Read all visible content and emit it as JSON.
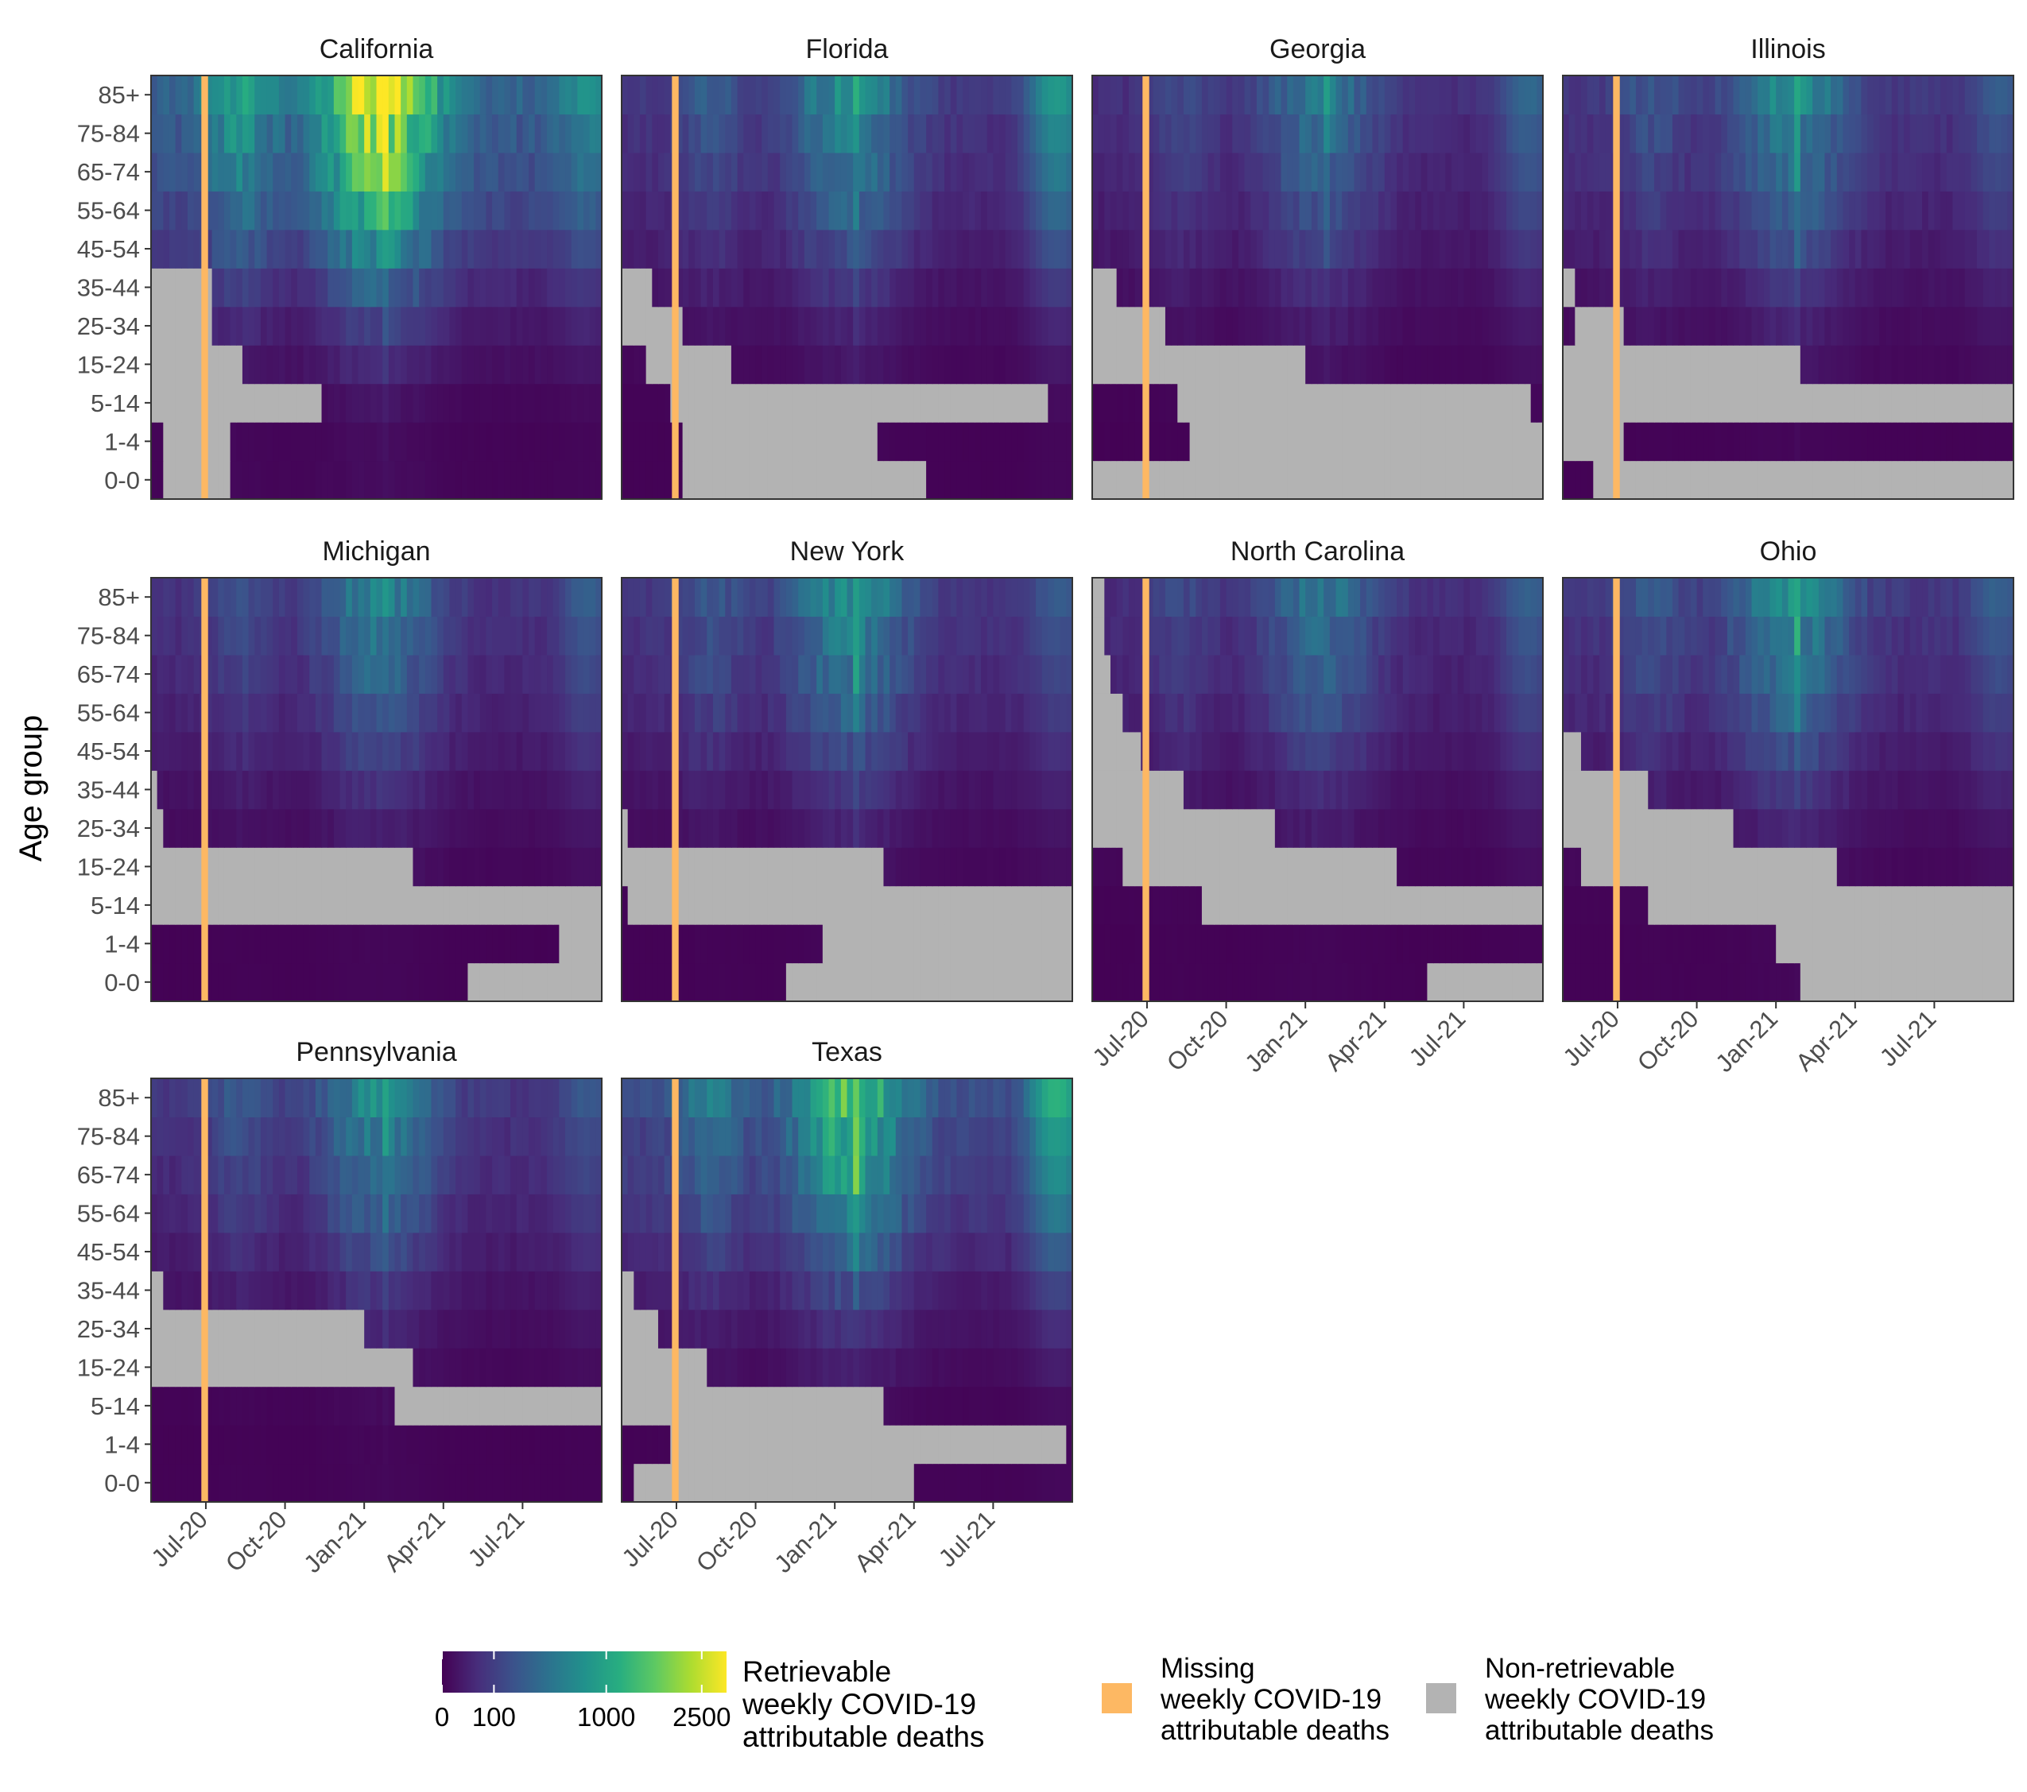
{
  "chart_data": {
    "type": "heatmap",
    "ylabel": "Age group",
    "age_groups": [
      "0-0",
      "1-4",
      "5-14",
      "15-24",
      "25-34",
      "35-44",
      "45-54",
      "55-64",
      "65-74",
      "75-84",
      "85+"
    ],
    "x_tick_labels": [
      "Jul-20",
      "Oct-20",
      "Jan-21",
      "Apr-21",
      "Jul-21"
    ],
    "x_tick_weeks": [
      9,
      22,
      35,
      48,
      61
    ],
    "n_weeks": 74,
    "missing_week": 8,
    "color_scale": {
      "breaks": [
        0,
        100,
        1000,
        2500
      ],
      "break_labels": [
        "0",
        "100",
        "1000",
        "2500"
      ],
      "max": 3000,
      "transform": "sqrt",
      "title": "Retrievable\nweekly COVID-19\nattributable deaths"
    },
    "legend": {
      "missing_label": "Missing\nweekly COVID-19\nattributable deaths",
      "nonretrievable_label": "Non-retrievable\nweekly COVID-19\nattributable deaths",
      "missing_color": "#FDB863",
      "nonretrievable_color": "#B3B3B3"
    },
    "states": [
      {
        "name": "California",
        "scale": 2800,
        "na": [
          [
            2,
            13
          ],
          [
            2,
            13
          ],
          [
            0,
            28
          ],
          [
            0,
            15
          ],
          [
            0,
            10
          ],
          [
            0,
            10
          ],
          [],
          [],
          [],
          [],
          []
        ],
        "peaks": [
          [
            38,
            1.8
          ],
          [
            39,
            1.0
          ]
        ],
        "late": 0.3
      },
      {
        "name": "Florida",
        "scale": 700,
        "na": [
          [
            10,
            50
          ],
          [
            10,
            42
          ],
          [
            8,
            70
          ],
          [
            4,
            18
          ],
          [
            0,
            10
          ],
          [
            0,
            5
          ],
          [],
          [],
          [],
          [],
          []
        ],
        "peaks": [
          [
            38,
            1.7
          ]
        ],
        "late": 2.4
      },
      {
        "name": "Georgia",
        "scale": 450,
        "na": [
          [
            0,
            74
          ],
          [
            16,
            74
          ],
          [
            14,
            72
          ],
          [
            0,
            35
          ],
          [
            0,
            12
          ],
          [
            0,
            4
          ],
          [],
          [],
          [],
          [],
          []
        ],
        "peaks": [
          [
            38,
            1.5
          ]
        ],
        "late": 1.4
      },
      {
        "name": "Illinois",
        "scale": 650,
        "na": [
          [
            5,
            74
          ],
          [
            0,
            10
          ],
          [
            0,
            74
          ],
          [
            0,
            39
          ],
          [
            2,
            10
          ],
          [
            0,
            2
          ],
          [],
          [],
          [],
          [],
          []
        ],
        "peaks": [
          [
            38,
            1.9
          ],
          [
            36,
            0.9
          ]
        ],
        "late": 0.6
      },
      {
        "name": "Michigan",
        "scale": 550,
        "na": [
          [
            52,
            74
          ],
          [
            67,
            74
          ],
          [
            0,
            74
          ],
          [
            0,
            43
          ],
          [
            0,
            2
          ],
          [
            0,
            1
          ],
          [],
          [],
          [],
          [],
          []
        ],
        "peaks": [
          [
            38,
            1.2
          ]
        ],
        "late": 0.8
      },
      {
        "name": "New York",
        "scale": 700,
        "na": [
          [
            27,
            74
          ],
          [
            33,
            74
          ],
          [
            1,
            74
          ],
          [
            0,
            43
          ],
          [
            0,
            1
          ],
          [],
          [],
          [],
          [],
          [],
          []
        ],
        "peaks": [
          [
            38,
            1.8
          ],
          [
            0,
            0.8
          ]
        ],
        "late": 0.5
      },
      {
        "name": "North Carolina",
        "scale": 420,
        "na": [
          [
            55,
            74
          ],
          [],
          [
            18,
            74
          ],
          [
            5,
            50
          ],
          [
            0,
            30
          ],
          [
            0,
            15
          ],
          [
            0,
            8
          ],
          [
            0,
            5
          ],
          [
            0,
            3
          ],
          [
            0,
            2
          ],
          [
            0,
            2
          ]
        ],
        "peaks": [
          [
            51,
            1.2
          ],
          [
            47,
            1.0
          ]
        ],
        "late": 1.2
      },
      {
        "name": "Ohio",
        "scale": 700,
        "na": [
          [
            39,
            74
          ],
          [
            35,
            74
          ],
          [
            14,
            74
          ],
          [
            3,
            45
          ],
          [
            0,
            28
          ],
          [
            0,
            14
          ],
          [
            0,
            3
          ],
          [],
          [],
          [],
          []
        ],
        "peaks": [
          [
            38,
            1.9
          ]
        ],
        "late": 0.6
      },
      {
        "name": "Pennsylvania",
        "scale": 650,
        "na": [
          [],
          [],
          [
            40,
            74
          ],
          [
            0,
            43
          ],
          [
            0,
            35
          ],
          [
            0,
            2
          ],
          [],
          [],
          [],
          [],
          []
        ],
        "peaks": [
          [
            38,
            1.7
          ],
          [
            0,
            1.0
          ]
        ],
        "late": 0.5
      },
      {
        "name": "Texas",
        "scale": 1400,
        "na": [
          [
            2,
            48
          ],
          [
            8,
            73
          ],
          [
            0,
            43
          ],
          [
            0,
            14
          ],
          [
            0,
            6
          ],
          [
            0,
            2
          ],
          [],
          [],
          [],
          [],
          []
        ],
        "peaks": [
          [
            38,
            1.8
          ]
        ],
        "late": 1.6
      }
    ]
  }
}
